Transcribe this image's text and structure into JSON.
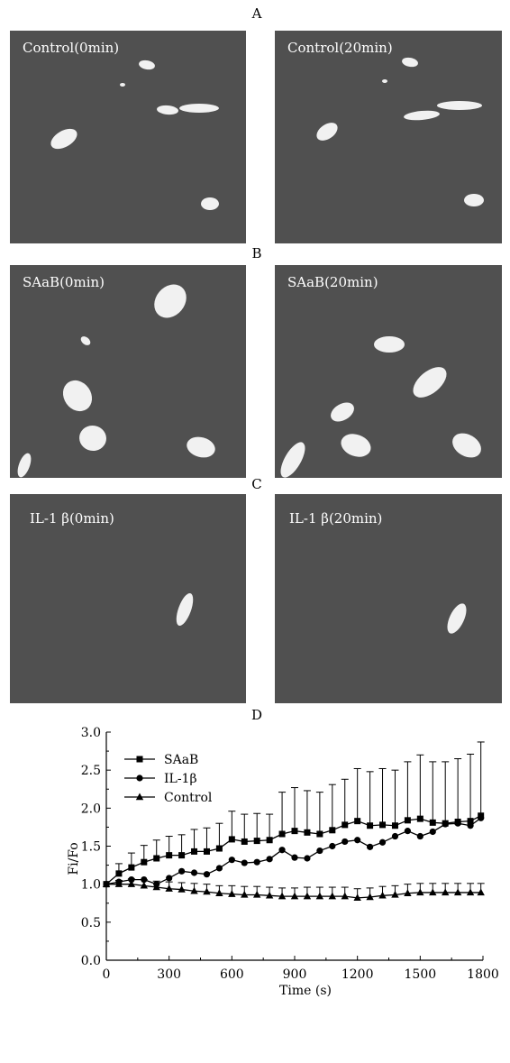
{
  "panels": {
    "A": {
      "letter": "A",
      "left_label": "Control(0min)",
      "right_label": "Control(20min)"
    },
    "B": {
      "letter": "B",
      "left_label": "SAaB(0min)",
      "right_label": "SAaB(20min)"
    },
    "C": {
      "letter": "C",
      "left_label": "IL-1 β(0min)",
      "right_label": "IL-1 β(20min)"
    },
    "D": {
      "letter": "D"
    }
  },
  "colors": {
    "micrograph_bg": "#505050",
    "cell": "#ffffff",
    "chart_ink": "#000000"
  },
  "chart_data": {
    "type": "line",
    "title": "",
    "xlabel": "Time (s)",
    "ylabel": "Fi/Fo",
    "xlim": [
      0,
      1800
    ],
    "ylim": [
      0,
      3.0
    ],
    "xticks": [
      0,
      300,
      600,
      900,
      1200,
      1500,
      1800
    ],
    "yticks": [
      0.0,
      0.5,
      1.0,
      1.5,
      2.0,
      2.5,
      3.0
    ],
    "ytick_labels": [
      "0.0",
      "0.5",
      "1.0",
      "1.5",
      "2.0",
      "2.5",
      "3.0"
    ],
    "legend_position": "top-left",
    "x": [
      0,
      60,
      120,
      180,
      240,
      300,
      360,
      420,
      480,
      540,
      600,
      660,
      720,
      780,
      840,
      900,
      960,
      1020,
      1080,
      1140,
      1200,
      1260,
      1320,
      1380,
      1440,
      1500,
      1560,
      1620,
      1680,
      1740,
      1790
    ],
    "series": [
      {
        "name": "SAaB",
        "marker": "square",
        "values": [
          1.0,
          1.14,
          1.22,
          1.29,
          1.34,
          1.38,
          1.38,
          1.43,
          1.43,
          1.47,
          1.59,
          1.56,
          1.57,
          1.58,
          1.66,
          1.7,
          1.68,
          1.66,
          1.71,
          1.78,
          1.83,
          1.77,
          1.78,
          1.77,
          1.84,
          1.86,
          1.81,
          1.8,
          1.82,
          1.83,
          1.9
        ],
        "errors": [
          0.0,
          0.13,
          0.19,
          0.22,
          0.24,
          0.25,
          0.27,
          0.29,
          0.31,
          0.33,
          0.37,
          0.36,
          0.36,
          0.34,
          0.55,
          0.57,
          0.55,
          0.55,
          0.6,
          0.6,
          0.69,
          0.71,
          0.74,
          0.73,
          0.77,
          0.84,
          0.8,
          0.81,
          0.83,
          0.88,
          0.97
        ]
      },
      {
        "name": "IL-1β",
        "marker": "circle",
        "values": [
          1.0,
          1.03,
          1.06,
          1.06,
          1.0,
          1.08,
          1.17,
          1.15,
          1.13,
          1.21,
          1.32,
          1.28,
          1.29,
          1.33,
          1.45,
          1.35,
          1.34,
          1.44,
          1.5,
          1.56,
          1.58,
          1.49,
          1.55,
          1.63,
          1.7,
          1.63,
          1.69,
          1.79,
          1.8,
          1.77,
          1.87
        ]
      },
      {
        "name": "Control",
        "marker": "triangle",
        "values": [
          1.0,
          1.0,
          1.0,
          0.98,
          0.96,
          0.94,
          0.93,
          0.91,
          0.9,
          0.88,
          0.87,
          0.86,
          0.86,
          0.85,
          0.84,
          0.84,
          0.84,
          0.84,
          0.84,
          0.84,
          0.82,
          0.83,
          0.85,
          0.86,
          0.88,
          0.89,
          0.89,
          0.89,
          0.89,
          0.89,
          0.89
        ],
        "errors": [
          0.0,
          0.05,
          0.07,
          0.08,
          0.08,
          0.09,
          0.09,
          0.1,
          0.1,
          0.1,
          0.11,
          0.11,
          0.11,
          0.11,
          0.11,
          0.11,
          0.12,
          0.12,
          0.12,
          0.12,
          0.12,
          0.12,
          0.12,
          0.12,
          0.12,
          0.12,
          0.12,
          0.12,
          0.12,
          0.12,
          0.12
        ]
      }
    ]
  }
}
